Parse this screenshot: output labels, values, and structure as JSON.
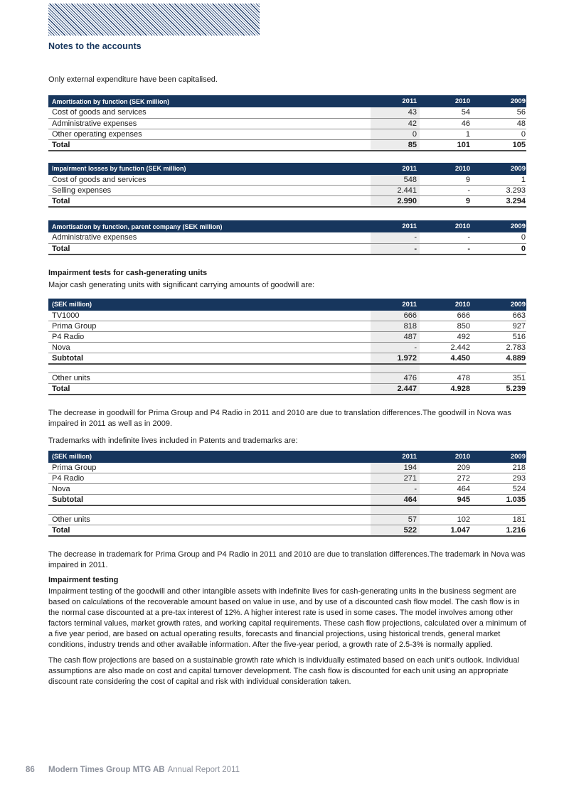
{
  "colors": {
    "navy": "#17365D",
    "stripe_dark": "#24406E",
    "stripe_light": "#8FA3C0",
    "column_2011_highlight": "#ECECEC",
    "rule_gray": "#8F8F8F",
    "rule_dark": "#4B4B4B",
    "footer_gray": "#8D929D"
  },
  "header": {
    "section_title": "Notes to the accounts"
  },
  "body": {
    "intro": "Only external expenditure have been capitalised.",
    "impairment_tests_heading": "Impairment tests for cash-generating units",
    "impairment_tests_intro": "Major cash generating units with significant carrying amounts of goodwill are:",
    "goodwill_note": "The decrease in goodwill for Prima Group and P4 Radio in 2011 and 2010 are due to translation differences.The goodwill in Nova was impaired in 2011 as well as in 2009.",
    "trademarks_intro": "Trademarks with indefinite lives included in Patents and trademarks are:",
    "trademark_note": "The decrease in trademark for Prima Group and P4 Radio in 2011 and 2010 are due to translation differences.The trademark in Nova was impaired in 2011.",
    "impairment_testing_heading": "Impairment testing",
    "impairment_testing_p1": "Impairment testing of the goodwill and other intangible assets with indefinite lives for cash-generating units in the business segment are based on calculations of the recoverable amount based on value in use, and by use of a discounted cash flow model. The cash flow is in the normal case discounted at a pre-tax interest of 12%. A higher interest rate is used in some cases. The model involves among other factors terminal values, market growth rates, and working capital requirements. These cash flow projections, calculated over a minimum of a five year period, are based on actual operating results, forecasts and financial projections, using historical trends, general market conditions, industry trends and other available information. After the five-year period, a growth rate of 2.5-3% is normally applied.",
    "impairment_testing_p2": "The cash flow projections are based on a sustainable growth rate which is individually estimated based on each unit's outlook. Individual assumptions are also made on cost and capital turnover development. The cash flow is discounted for each unit using an appropriate discount rate considering the cost of capital and risk with individual consideration taken."
  },
  "tables": [
    {
      "title": "Amortisation by function (SEK million)",
      "years": [
        "2011",
        "2010",
        "2009"
      ],
      "rows": [
        {
          "label": "Cost of goods and services",
          "values": [
            "43",
            "54",
            "56"
          ]
        },
        {
          "label": "Administrative expenses",
          "values": [
            "42",
            "46",
            "48"
          ]
        },
        {
          "label": "Other operating expenses",
          "values": [
            "0",
            "1",
            "0"
          ]
        },
        {
          "label": "Total",
          "values": [
            "85",
            "101",
            "105"
          ],
          "style": "total"
        }
      ]
    },
    {
      "title": "Impairment losses by function (SEK million)",
      "years": [
        "2011",
        "2010",
        "2009"
      ],
      "rows": [
        {
          "label": "Cost of goods and services",
          "values": [
            "548",
            "9",
            "1"
          ]
        },
        {
          "label": "Selling expenses",
          "values": [
            "2.441",
            "-",
            "3.293"
          ]
        },
        {
          "label": "Total",
          "values": [
            "2.990",
            "9",
            "3.294"
          ],
          "style": "total"
        }
      ]
    },
    {
      "title": "Amortisation by function, parent company (SEK million)",
      "years": [
        "2011",
        "2010",
        "2009"
      ],
      "rows": [
        {
          "label": "Administrative expenses",
          "values": [
            "-",
            "-",
            "0"
          ]
        },
        {
          "label": "Total",
          "values": [
            "-",
            "-",
            "0"
          ],
          "style": "total"
        }
      ]
    },
    {
      "title": "(SEK million)",
      "years": [
        "2011",
        "2010",
        "2009"
      ],
      "rows": [
        {
          "label": "TV1000",
          "values": [
            "666",
            "666",
            "663"
          ]
        },
        {
          "label": "Prima Group",
          "values": [
            "818",
            "850",
            "927"
          ]
        },
        {
          "label": "P4 Radio",
          "values": [
            "487",
            "492",
            "516"
          ]
        },
        {
          "label": "Nova",
          "values": [
            "-",
            "2.442",
            "2.783"
          ]
        },
        {
          "label": "Subtotal",
          "values": [
            "1.972",
            "4.450",
            "4.889"
          ],
          "style": "total"
        },
        {
          "spacer": true
        },
        {
          "label": "Other units",
          "values": [
            "476",
            "478",
            "351"
          ]
        },
        {
          "label": "Total",
          "values": [
            "2.447",
            "4.928",
            "5.239"
          ],
          "style": "total"
        }
      ]
    },
    {
      "title": "(SEK million)",
      "years": [
        "2011",
        "2010",
        "2009"
      ],
      "rows": [
        {
          "label": "Prima Group",
          "values": [
            "194",
            "209",
            "218"
          ]
        },
        {
          "label": "P4 Radio",
          "values": [
            "271",
            "272",
            "293"
          ]
        },
        {
          "label": "Nova",
          "values": [
            "-",
            "464",
            "524"
          ]
        },
        {
          "label": "Subtotal",
          "values": [
            "464",
            "945",
            "1.035"
          ],
          "style": "total"
        },
        {
          "spacer": true
        },
        {
          "label": "Other units",
          "values": [
            "57",
            "102",
            "181"
          ]
        },
        {
          "label": "Total",
          "values": [
            "522",
            "1.047",
            "1.216"
          ],
          "style": "total"
        }
      ]
    }
  ],
  "footer": {
    "page_number": "86",
    "company": "Modern Times Group MTG AB",
    "report": "Annual Report 2011"
  }
}
